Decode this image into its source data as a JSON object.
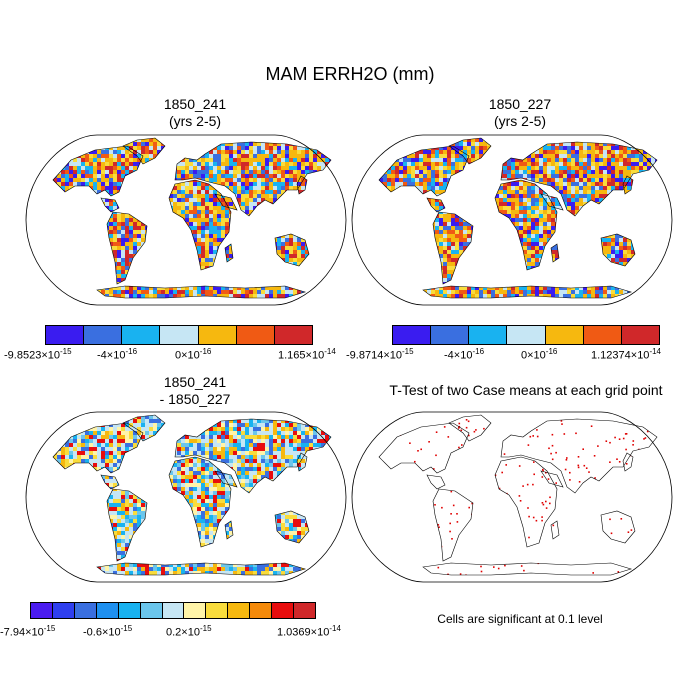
{
  "title": "MAM ERRH2O (mm)",
  "panels": [
    {
      "line1": "1850_241",
      "line2": "(yrs 2-5)"
    },
    {
      "line1": "1850_227",
      "line2": "(yrs 2-5)"
    },
    {
      "line1": "1850_241",
      "line2": "- 1850_227"
    },
    {
      "line1": "T-Test of two Case means at each grid point"
    }
  ],
  "colorbars": [
    {
      "colors": [
        "#3a1cf0",
        "#3a6fe0",
        "#19b2f0",
        "#c6e6f4",
        "#f6b80f",
        "#f05a14",
        "#d0282a"
      ],
      "labels": [
        {
          "mant": "-9.8523",
          "exp": "-15"
        },
        {
          "mant": "-4",
          "exp": "-16"
        },
        {
          "mant": "0",
          "exp": "-16"
        },
        {
          "mant": "1.165",
          "exp": "-14"
        }
      ]
    },
    {
      "colors": [
        "#3a1cf0",
        "#3a6fe0",
        "#19b2f0",
        "#c6e6f4",
        "#f6b80f",
        "#f05a14",
        "#d0282a"
      ],
      "labels": [
        {
          "mant": "-9.8714",
          "exp": "-15"
        },
        {
          "mant": "-4",
          "exp": "-16"
        },
        {
          "mant": "0",
          "exp": "-16"
        },
        {
          "mant": "1.12374",
          "exp": "-14"
        }
      ]
    },
    {
      "colors": [
        "#4b1cf0",
        "#2f3fef",
        "#3a6fe0",
        "#1e90f0",
        "#19b2f0",
        "#6bc6ec",
        "#c6e6f4",
        "#fff4a8",
        "#f9dc3c",
        "#f6b80f",
        "#f58a0a",
        "#e80d0d",
        "#d0282a"
      ],
      "labels": [
        {
          "mant": "-7.94",
          "exp": "-15"
        },
        {
          "mant": "-0.6",
          "exp": "-15"
        },
        {
          "mant": "0.2",
          "exp": "-15"
        },
        {
          "mant": "1.0369",
          "exp": "-14"
        }
      ]
    }
  ],
  "significance_note": "Cells are significant at 0.1 level",
  "map_colors": {
    "panel1": [
      "#f6b80f",
      "#f6b80f",
      "#f9dc3c",
      "#c6e6f4",
      "#f05a14",
      "#3a1cf0",
      "#3a6fe0",
      "#19b2f0",
      "#d0282a"
    ],
    "panel2": [
      "#f6b80f",
      "#f6b80f",
      "#f9dc3c",
      "#c6e6f4",
      "#f05a14",
      "#3a1cf0",
      "#3a6fe0",
      "#19b2f0",
      "#d0282a"
    ],
    "panel3": [
      "#c6e6f4",
      "#c6e6f4",
      "#fff4a8",
      "#f9dc3c",
      "#19b2f0",
      "#6bc6ec",
      "#f6b80f",
      "#3a6fe0",
      "#e80d0d"
    ],
    "significant_cell": "#e00000"
  }
}
